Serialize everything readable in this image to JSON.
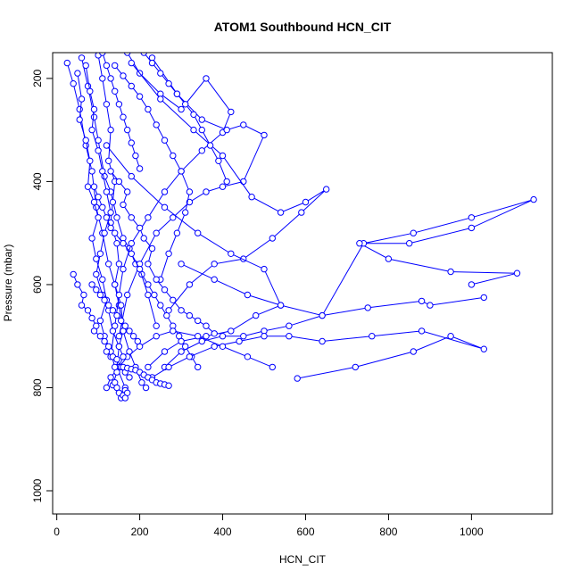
{
  "chart_data": {
    "type": "line",
    "title": "ATOM1 Southbound HCN_CIT",
    "xlabel": "HCN_CIT",
    "ylabel": "Pressure (mbar)",
    "xlim": [
      -10,
      1195
    ],
    "ylim": [
      1045,
      150
    ],
    "x_ticks": [
      0,
      200,
      400,
      600,
      800,
      1000
    ],
    "y_ticks": [
      200,
      400,
      600,
      800,
      1000
    ],
    "grid": false,
    "legend": "none",
    "series_color": "#0000ff",
    "marker": "open-circle",
    "series": [
      {
        "x": [
          25,
          40,
          55,
          70,
          85,
          95,
          110,
          125,
          140,
          150,
          160,
          175,
          190,
          205,
          215
        ],
        "y": [
          170,
          210,
          260,
          330,
          380,
          450,
          500,
          560,
          600,
          640,
          690,
          730,
          760,
          790,
          800
        ]
      },
      {
        "x": [
          60,
          75,
          90,
          100,
          115,
          130,
          145,
          160,
          175,
          190,
          205,
          220,
          235,
          250,
          265,
          280,
          295,
          310,
          325,
          340
        ],
        "y": [
          160,
          215,
          275,
          320,
          390,
          420,
          470,
          510,
          530,
          560,
          580,
          600,
          620,
          640,
          660,
          680,
          700,
          720,
          740,
          760
        ]
      },
      {
        "x": [
          100,
          110,
          120,
          130,
          125,
          140,
          135,
          130,
          145,
          150,
          140,
          155,
          160,
          150,
          145,
          165
        ],
        "y": [
          155,
          200,
          250,
          300,
          360,
          400,
          440,
          480,
          520,
          560,
          600,
          640,
          690,
          720,
          760,
          800
        ]
      },
      {
        "x": [
          170,
          200,
          250,
          300,
          360,
          420,
          400,
          350,
          300,
          260,
          220,
          180,
          160,
          150,
          140,
          130
        ],
        "y": [
          150,
          190,
          230,
          260,
          200,
          265,
          305,
          340,
          380,
          420,
          470,
          520,
          570,
          620,
          680,
          740
        ]
      },
      {
        "x": [
          230,
          290,
          350,
          410,
          450,
          500,
          450,
          400,
          360,
          320,
          280,
          240,
          200,
          170,
          150
        ],
        "y": [
          160,
          230,
          280,
          300,
          290,
          310,
          400,
          410,
          420,
          440,
          470,
          500,
          560,
          620,
          700
        ]
      },
      {
        "x": [
          180,
          250,
          330,
          400,
          470,
          540,
          600,
          650,
          590,
          520,
          450,
          380,
          320,
          270
        ],
        "y": [
          170,
          240,
          300,
          350,
          430,
          460,
          440,
          415,
          460,
          510,
          550,
          560,
          600,
          650
        ]
      },
      {
        "x": [
          120,
          180,
          260,
          340,
          420,
          500,
          540,
          480,
          420,
          360,
          300,
          260,
          220
        ],
        "y": [
          330,
          390,
          450,
          500,
          540,
          570,
          640,
          660,
          690,
          700,
          710,
          730,
          760
        ]
      },
      {
        "x": [
          300,
          380,
          460,
          540,
          640,
          740,
          860,
          1000,
          1150,
          1000,
          850,
          730,
          800,
          950,
          1110,
          1000
        ],
        "y": [
          560,
          590,
          620,
          640,
          660,
          520,
          500,
          470,
          435,
          490,
          520,
          520,
          550,
          575,
          578,
          600
        ]
      },
      {
        "x": [
          1030,
          900,
          880,
          750,
          640,
          560,
          500,
          450,
          400,
          350,
          300,
          260
        ],
        "y": [
          625,
          640,
          632,
          645,
          660,
          680,
          690,
          700,
          700,
          710,
          730,
          760
        ]
      },
      {
        "x": [
          580,
          720,
          860,
          950,
          1030,
          880,
          760,
          640,
          560,
          500,
          440,
          380,
          320,
          270,
          230
        ],
        "y": [
          782,
          760,
          730,
          700,
          725,
          690,
          700,
          710,
          700,
          700,
          710,
          720,
          740,
          760,
          780
        ]
      },
      {
        "x": [
          520,
          460,
          400,
          340,
          280,
          240,
          200,
          170,
          150,
          130,
          120
        ],
        "y": [
          760,
          740,
          720,
          700,
          690,
          700,
          720,
          740,
          760,
          780,
          800
        ]
      },
      {
        "x": [
          90,
          100,
          110,
          120,
          130,
          140,
          160,
          180,
          200,
          220,
          240
        ],
        "y": [
          410,
          430,
          450,
          470,
          490,
          500,
          520,
          540,
          570,
          620,
          680
        ]
      },
      {
        "x": [
          70,
          80,
          90,
          85,
          100,
          110,
          120,
          130,
          115,
          105,
          95,
          110,
          125,
          135,
          150,
          160,
          145,
          135
        ],
        "y": [
          175,
          225,
          260,
          300,
          340,
          380,
          420,
          460,
          500,
          540,
          580,
          620,
          650,
          690,
          720,
          740,
          770,
          795
        ]
      },
      {
        "x": [
          50,
          60,
          55,
          70,
          80,
          75,
          90,
          100,
          85,
          95,
          110,
          120,
          105,
          115,
          130,
          140
        ],
        "y": [
          190,
          240,
          280,
          320,
          360,
          410,
          440,
          470,
          510,
          550,
          590,
          630,
          670,
          700,
          730,
          760
        ]
      },
      {
        "x": [
          140,
          160,
          180,
          200,
          220,
          240,
          260,
          280,
          300,
          320,
          310,
          290,
          270,
          250
        ],
        "y": [
          175,
          195,
          215,
          235,
          260,
          290,
          320,
          350,
          380,
          420,
          460,
          500,
          540,
          590
        ]
      },
      {
        "x": [
          40,
          50,
          65,
          60,
          75,
          85,
          95,
          90,
          105,
          115,
          125,
          120,
          135,
          145,
          155,
          165,
          175
        ],
        "y": [
          580,
          600,
          620,
          640,
          650,
          665,
          680,
          690,
          700,
          710,
          720,
          730,
          740,
          745,
          760,
          770,
          780
        ]
      },
      {
        "x": [
          130,
          150,
          170,
          160,
          180,
          200,
          210,
          230,
          220,
          240,
          260,
          280,
          300,
          320,
          340,
          360,
          380
        ],
        "y": [
          380,
          400,
          420,
          445,
          470,
          490,
          510,
          530,
          560,
          590,
          610,
          630,
          650,
          660,
          670,
          680,
          695
        ]
      },
      {
        "x": [
          160,
          170,
          180,
          190,
          200,
          210,
          220,
          230,
          240,
          250,
          260,
          270
        ],
        "y": [
          760,
          762,
          764,
          766,
          770,
          775,
          780,
          785,
          790,
          792,
          794,
          796
        ]
      },
      {
        "x": [
          110,
          120,
          130,
          140,
          150,
          160,
          170,
          180,
          190,
          200
        ],
        "y": [
          150,
          175,
          200,
          225,
          250,
          275,
          300,
          325,
          350,
          375
        ]
      },
      {
        "x": [
          210,
          230,
          250,
          270,
          290,
          310,
          330,
          350,
          370,
          390,
          410
        ],
        "y": [
          150,
          170,
          190,
          210,
          230,
          250,
          270,
          300,
          330,
          360,
          400
        ]
      },
      {
        "x": [
          140,
          145,
          150,
          155,
          160,
          165,
          170,
          165
        ],
        "y": [
          790,
          800,
          810,
          820,
          815,
          805,
          810,
          820
        ]
      },
      {
        "x": [
          85,
          95,
          105,
          115,
          125,
          135,
          145,
          155,
          165,
          175,
          185,
          195
        ],
        "y": [
          600,
          610,
          620,
          630,
          640,
          650,
          660,
          670,
          680,
          690,
          700,
          710
        ]
      }
    ]
  }
}
